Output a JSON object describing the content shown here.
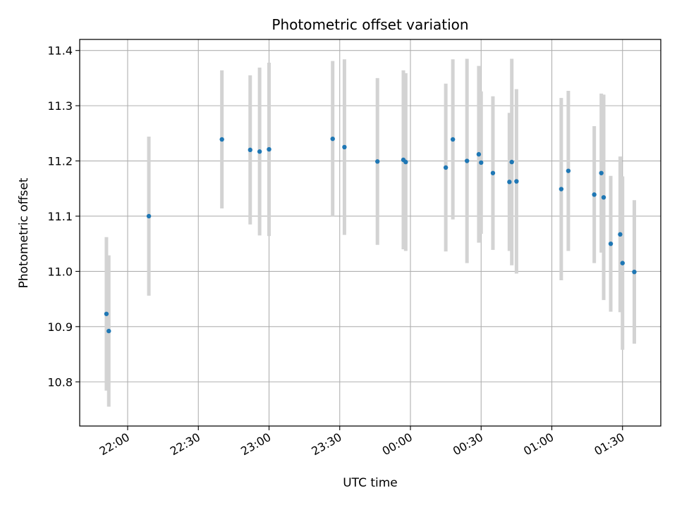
{
  "chart_data": {
    "type": "scatter",
    "title": "Photometric offset variation",
    "xlabel": "UTC time",
    "ylabel": "Photometric offset",
    "x_ticks": [
      "22:00",
      "22:30",
      "23:00",
      "23:30",
      "00:00",
      "00:30",
      "01:00",
      "01:30"
    ],
    "y_ticks": [
      10.8,
      10.9,
      11.0,
      11.1,
      11.2,
      11.3,
      11.4
    ],
    "ylim": [
      10.72,
      11.42
    ],
    "grid": true,
    "colors": {
      "point": "#1f77b4",
      "errorbar": "#d3d3d3",
      "grid": "#b0b0b0"
    },
    "points": [
      {
        "x": "21:51",
        "y": 10.923,
        "err": 0.139
      },
      {
        "x": "21:52",
        "y": 10.892,
        "err": 0.137
      },
      {
        "x": "22:09",
        "y": 11.1,
        "err": 0.144
      },
      {
        "x": "22:40",
        "y": 11.239,
        "err": 0.125
      },
      {
        "x": "22:52",
        "y": 11.22,
        "err": 0.135
      },
      {
        "x": "22:56",
        "y": 11.217,
        "err": 0.152
      },
      {
        "x": "23:00",
        "y": 11.221,
        "err": 0.157
      },
      {
        "x": "23:27",
        "y": 11.24,
        "err": 0.141
      },
      {
        "x": "23:32",
        "y": 11.225,
        "err": 0.159
      },
      {
        "x": "23:46",
        "y": 11.199,
        "err": 0.151
      },
      {
        "x": "23:57",
        "y": 11.202,
        "err": 0.162
      },
      {
        "x": "23:58",
        "y": 11.198,
        "err": 0.161
      },
      {
        "x": "00:15",
        "y": 11.188,
        "err": 0.152
      },
      {
        "x": "00:18",
        "y": 11.239,
        "err": 0.145
      },
      {
        "x": "00:24",
        "y": 11.2,
        "err": 0.185
      },
      {
        "x": "00:29",
        "y": 11.212,
        "err": 0.16
      },
      {
        "x": "00:30",
        "y": 11.197,
        "err": 0.129
      },
      {
        "x": "00:35",
        "y": 11.178,
        "err": 0.139
      },
      {
        "x": "00:42",
        "y": 11.162,
        "err": 0.125
      },
      {
        "x": "00:43",
        "y": 11.198,
        "err": 0.187
      },
      {
        "x": "00:45",
        "y": 11.163,
        "err": 0.167
      },
      {
        "x": "01:04",
        "y": 11.149,
        "err": 0.165
      },
      {
        "x": "01:07",
        "y": 11.182,
        "err": 0.145
      },
      {
        "x": "01:18",
        "y": 11.139,
        "err": 0.124
      },
      {
        "x": "01:21",
        "y": 11.178,
        "err": 0.144
      },
      {
        "x": "01:22",
        "y": 11.134,
        "err": 0.186
      },
      {
        "x": "01:25",
        "y": 11.05,
        "err": 0.123
      },
      {
        "x": "01:29",
        "y": 11.067,
        "err": 0.141
      },
      {
        "x": "01:30",
        "y": 11.015,
        "err": 0.157
      },
      {
        "x": "01:35",
        "y": 10.999,
        "err": 0.13
      }
    ]
  }
}
